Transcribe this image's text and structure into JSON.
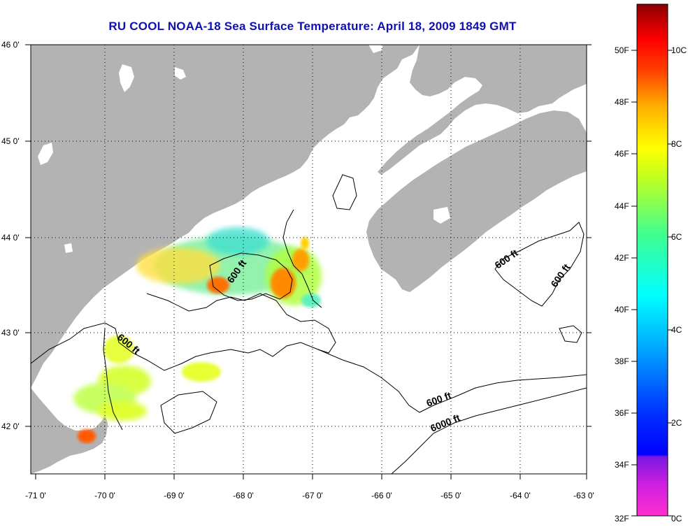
{
  "title": "RU COOL  NOAA-18  Sea Surface Temperature:  April 18, 2009 1849 GMT",
  "map": {
    "lon_ticks": [
      "-71 0'",
      "-70 0'",
      "-69 0'",
      "-68 0'",
      "-67 0'",
      "-66 0'",
      "-65 0'",
      "-64 0'",
      "-63 0'"
    ],
    "lat_ticks": [
      "46 0'",
      "45 0'",
      "44 0'",
      "43 0'",
      "42 0'"
    ],
    "contour_labels": [
      "600 ft",
      "600 ft",
      "600 ft",
      "600 ft",
      "600 ft",
      "6000 ft"
    ],
    "colors": {
      "land": "#b3b3b3",
      "ocean": "#ffffff",
      "grid": "#000000"
    }
  },
  "colorbar": {
    "fahrenheit": [
      "50F",
      "48F",
      "46F",
      "44F",
      "42F",
      "40F",
      "38F",
      "36F",
      "34F",
      "32F"
    ],
    "celsius": [
      "10C",
      "8C",
      "6C",
      "4C",
      "2C",
      "0C"
    ]
  }
}
